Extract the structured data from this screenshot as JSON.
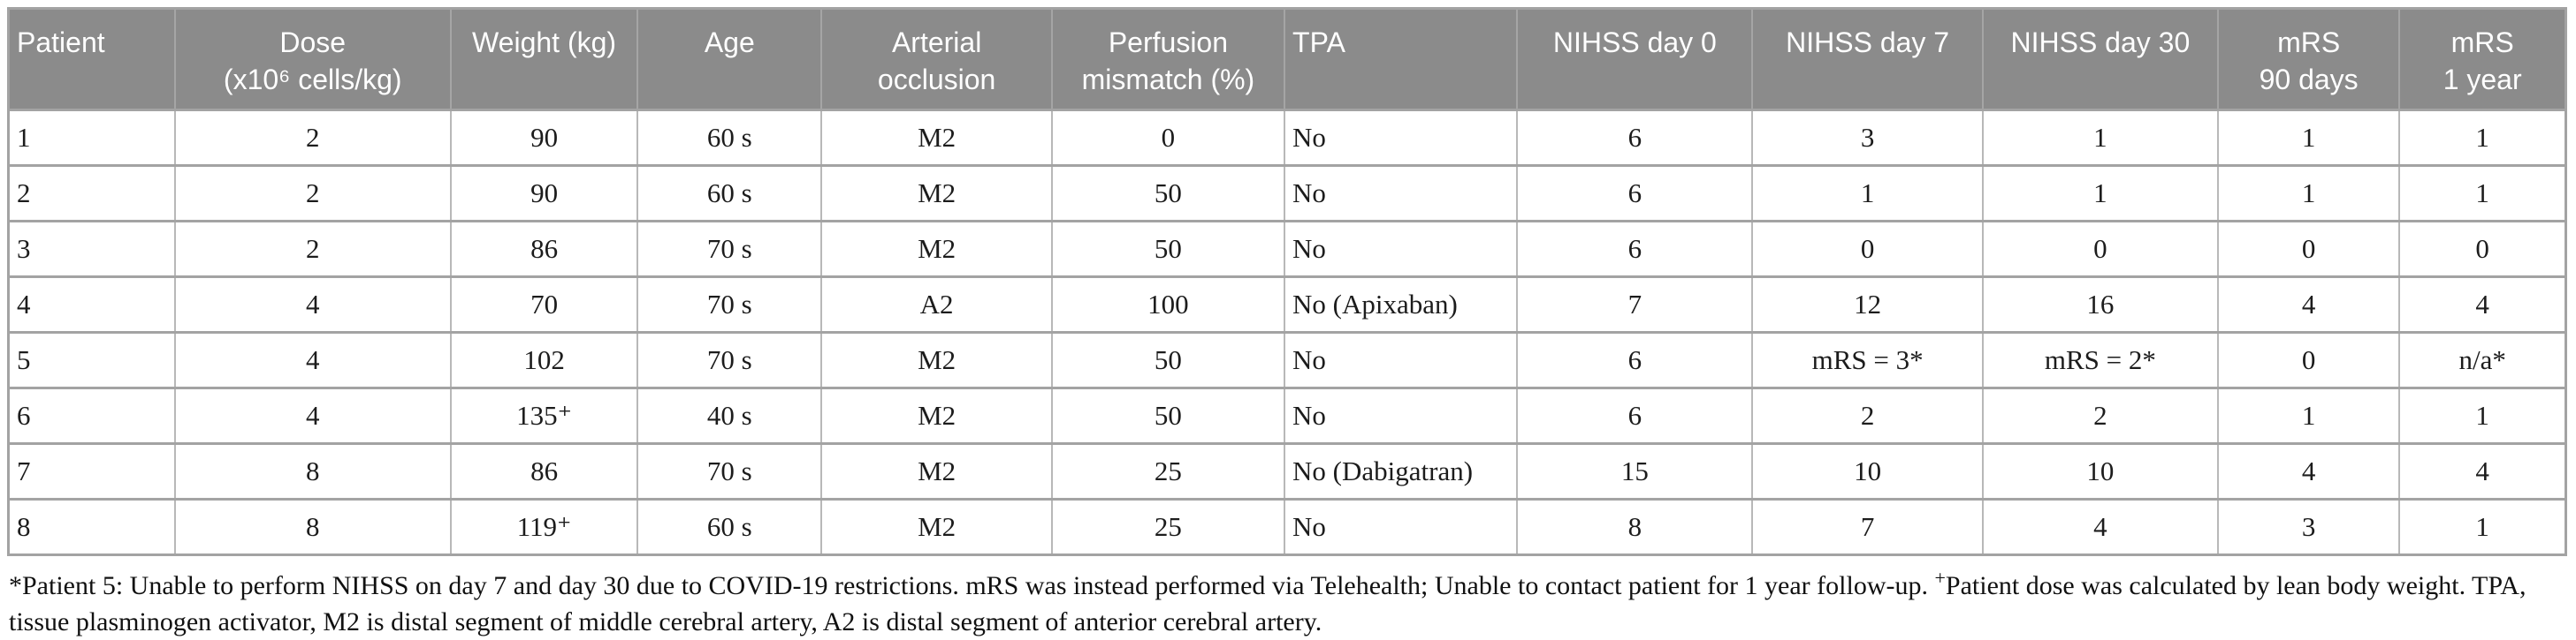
{
  "colors": {
    "header_bg": "#8b8b8b",
    "header_text": "#ffffff",
    "row_border": "#a3a3a3",
    "cell_border": "#b8b8b8",
    "header_cell_border": "#a5a5a5"
  },
  "table": {
    "columns": [
      {
        "key": "patient",
        "label": "Patient",
        "align": "left",
        "width": "6.5%"
      },
      {
        "key": "dose",
        "label": "Dose\n(x10⁶ cells/kg)",
        "align": "center",
        "width": "10.8%"
      },
      {
        "key": "weight",
        "label": "Weight (kg)",
        "align": "center",
        "width": "7.3%"
      },
      {
        "key": "age",
        "label": "Age",
        "align": "center",
        "width": "7.2%"
      },
      {
        "key": "arterial-occlusion",
        "label": "Arterial\nocclusion",
        "align": "center",
        "width": "9.0%"
      },
      {
        "key": "perfusion-mismatch",
        "label": "Perfusion\nmismatch (%)",
        "align": "center",
        "width": "9.1%"
      },
      {
        "key": "tpa",
        "label": "TPA",
        "align": "left",
        "width": "9.1%"
      },
      {
        "key": "nihss-day-0",
        "label": "NIHSS day 0",
        "align": "center",
        "width": "9.2%"
      },
      {
        "key": "nihss-day-7",
        "label": "NIHSS day 7",
        "align": "center",
        "width": "9.0%"
      },
      {
        "key": "nihss-day-30",
        "label": "NIHSS day 30",
        "align": "center",
        "width": "9.2%"
      },
      {
        "key": "mrs-90-days",
        "label": "mRS\n90 days",
        "align": "center",
        "width": "7.1%"
      },
      {
        "key": "mrs-1-year",
        "label": "mRS\n1 year",
        "align": "center",
        "width": "6.5%"
      }
    ],
    "rows": [
      [
        "1",
        "2",
        "90",
        "60 s",
        "M2",
        "0",
        "No",
        "6",
        "3",
        "1",
        "1",
        "1"
      ],
      [
        "2",
        "2",
        "90",
        "60 s",
        "M2",
        "50",
        "No",
        "6",
        "1",
        "1",
        "1",
        "1"
      ],
      [
        "3",
        "2",
        "86",
        "70 s",
        "M2",
        "50",
        "No",
        "6",
        "0",
        "0",
        "0",
        "0"
      ],
      [
        "4",
        "4",
        "70",
        "70 s",
        "A2",
        "100",
        "No (Apixaban)",
        "7",
        "12",
        "16",
        "4",
        "4"
      ],
      [
        "5",
        "4",
        "102",
        "70 s",
        "M2",
        "50",
        "No",
        "6",
        "mRS = 3*",
        "mRS = 2*",
        "0",
        "n/a*"
      ],
      [
        "6",
        "4",
        "135⁺",
        "40 s",
        "M2",
        "50",
        "No",
        "6",
        "2",
        "2",
        "1",
        "1"
      ],
      [
        "7",
        "8",
        "86",
        "70 s",
        "M2",
        "25",
        "No (Dabigatran)",
        "15",
        "10",
        "10",
        "4",
        "4"
      ],
      [
        "8",
        "8",
        "119⁺",
        "60 s",
        "M2",
        "25",
        "No",
        "8",
        "7",
        "4",
        "3",
        "1"
      ]
    ]
  },
  "footnote": {
    "asterisk_note": "*Patient 5: Unable to perform NIHSS on day 7 and day 30 due to COVID-19 restrictions. mRS was instead performed via Telehealth; Unable to contact patient for 1 year follow-up. ",
    "plus_sup": "+",
    "plus_note": "Patient dose was calculated by lean body weight. TPA, tissue plasminogen activator, M2 is distal segment of middle cerebral artery, A2 is distal segment of anterior cerebral artery."
  }
}
